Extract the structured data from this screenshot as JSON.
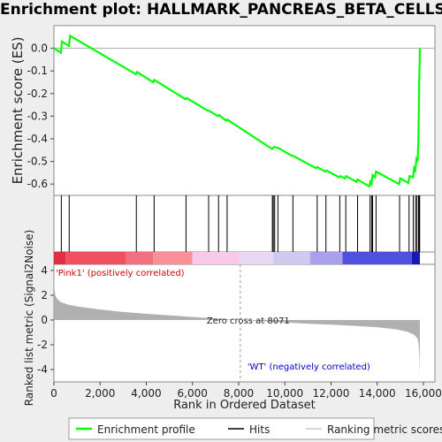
{
  "title": "Enrichment plot: HALLMARK_PANCREAS_BETA_CELLS",
  "colors": {
    "background": "#eeeeee",
    "panel": "#ffffff",
    "profile": "#00ff00",
    "hits": "#000000",
    "metric": "#b0b0b0",
    "pos_label": "#cc0000",
    "neg_label": "#0000cc"
  },
  "chart_data": [
    {
      "type": "line",
      "name": "enrichment-profile",
      "ylabel": "Enrichment score (ES)",
      "ylim": [
        -0.65,
        0.1
      ],
      "yticks": [
        0.0,
        -0.1,
        -0.2,
        -0.3,
        -0.4,
        -0.5,
        -0.6
      ],
      "ytick_labels": [
        "0.0",
        "-0.1",
        "-0.2",
        "-0.3",
        "-0.4",
        "-0.5",
        "-0.6"
      ],
      "xlim": [
        0,
        16500
      ],
      "series": [
        {
          "x": [
            0,
            300,
            350,
            650,
            700,
            3550,
            3600,
            4300,
            4350,
            5700,
            5750,
            6650,
            6700,
            7100,
            7150,
            7450,
            7500,
            9450,
            9500,
            9550,
            9650,
            9700,
            10300,
            10350,
            11350,
            11400,
            11750,
            11800,
            12350,
            12400,
            12600,
            12650,
            13100,
            13150,
            13650,
            13700,
            13750,
            13800,
            13900,
            13950,
            14950,
            15000,
            15350,
            15400,
            15550,
            15600,
            15650,
            15700,
            15750,
            15780,
            15800,
            15820,
            15840,
            15850
          ],
          "y": [
            0.0,
            -0.02,
            0.03,
            0.01,
            0.055,
            -0.115,
            -0.105,
            -0.15,
            -0.14,
            -0.225,
            -0.22,
            -0.275,
            -0.275,
            -0.3,
            -0.295,
            -0.32,
            -0.315,
            -0.445,
            -0.44,
            -0.435,
            -0.44,
            -0.44,
            -0.475,
            -0.475,
            -0.53,
            -0.525,
            -0.545,
            -0.54,
            -0.57,
            -0.565,
            -0.575,
            -0.565,
            -0.59,
            -0.58,
            -0.61,
            -0.59,
            -0.6,
            -0.56,
            -0.57,
            -0.545,
            -0.6,
            -0.575,
            -0.595,
            -0.565,
            -0.57,
            -0.53,
            -0.54,
            -0.49,
            -0.5,
            -0.42,
            -0.3,
            -0.15,
            -0.05,
            0.0
          ]
        }
      ]
    },
    {
      "type": "scatter",
      "name": "hits",
      "xlim": [
        0,
        16500
      ],
      "x": [
        320,
        660,
        3570,
        4340,
        5720,
        6700,
        7130,
        7500,
        9460,
        9500,
        9560,
        9700,
        10350,
        11400,
        11780,
        12380,
        12640,
        13150,
        13690,
        13760,
        13800,
        13950,
        14970,
        15380,
        15560,
        15660,
        15720,
        15790,
        15820,
        15840
      ]
    },
    {
      "type": "heatmap",
      "name": "ranking-colorbar",
      "xlim": [
        0,
        16500
      ],
      "bands": [
        {
          "x0": 0,
          "x1": 500,
          "color": "#e03040"
        },
        {
          "x0": 500,
          "x1": 3100,
          "color": "#f05060"
        },
        {
          "x0": 3100,
          "x1": 4300,
          "color": "#f07080"
        },
        {
          "x0": 4300,
          "x1": 6000,
          "color": "#f89098"
        },
        {
          "x0": 6000,
          "x1": 8000,
          "color": "#f8c8e8"
        },
        {
          "x0": 8000,
          "x1": 9500,
          "color": "#e8d8f4"
        },
        {
          "x0": 9500,
          "x1": 11100,
          "color": "#d0c8f0"
        },
        {
          "x0": 11100,
          "x1": 12500,
          "color": "#a8a0ec"
        },
        {
          "x0": 12500,
          "x1": 15500,
          "color": "#5050e0"
        },
        {
          "x0": 15500,
          "x1": 15850,
          "color": "#1818b8"
        }
      ]
    },
    {
      "type": "area",
      "name": "ranked-metric",
      "xlabel": "Rank in Ordered Dataset",
      "ylabel": "Ranked list metric (Signal2Noise)",
      "ylim": [
        -5,
        4.5
      ],
      "yticks": [
        4,
        2,
        0,
        -2,
        -4
      ],
      "ytick_labels": [
        "4",
        "2",
        "0",
        "-2",
        "-4"
      ],
      "xticks": [
        0,
        2000,
        4000,
        6000,
        8000,
        10000,
        12000,
        14000,
        16000
      ],
      "xtick_labels": [
        "0",
        "2,000",
        "4,000",
        "6,000",
        "8,000",
        "10,000",
        "12,000",
        "14,000",
        "16,000"
      ],
      "xlim": [
        0,
        16500
      ],
      "x": [
        0,
        20,
        60,
        150,
        300,
        600,
        1000,
        2000,
        3000,
        4000,
        5000,
        6000,
        7000,
        8071,
        9000,
        10000,
        11000,
        12000,
        13000,
        14000,
        14800,
        15300,
        15600,
        15750,
        15800,
        15830,
        15850
      ],
      "values": [
        4.0,
        2.5,
        2.0,
        1.7,
        1.45,
        1.25,
        1.1,
        0.85,
        0.65,
        0.5,
        0.38,
        0.25,
        0.12,
        0.0,
        -0.1,
        -0.2,
        -0.3,
        -0.38,
        -0.47,
        -0.58,
        -0.75,
        -0.95,
        -1.2,
        -1.5,
        -2.0,
        -3.0,
        -4.6
      ],
      "zero_cross": 8071,
      "annotations": {
        "positive": "'Pink1' (positively correlated)",
        "zero_cross": "Zero cross at 8071",
        "negative": "'WT' (negatively correlated)"
      }
    }
  ],
  "legend": {
    "items": [
      {
        "label": "Enrichment profile",
        "color": "#00ff00"
      },
      {
        "label": "Hits",
        "color": "#000000"
      },
      {
        "label": "Ranking metric scores",
        "color": "#c8c8c8"
      }
    ]
  }
}
